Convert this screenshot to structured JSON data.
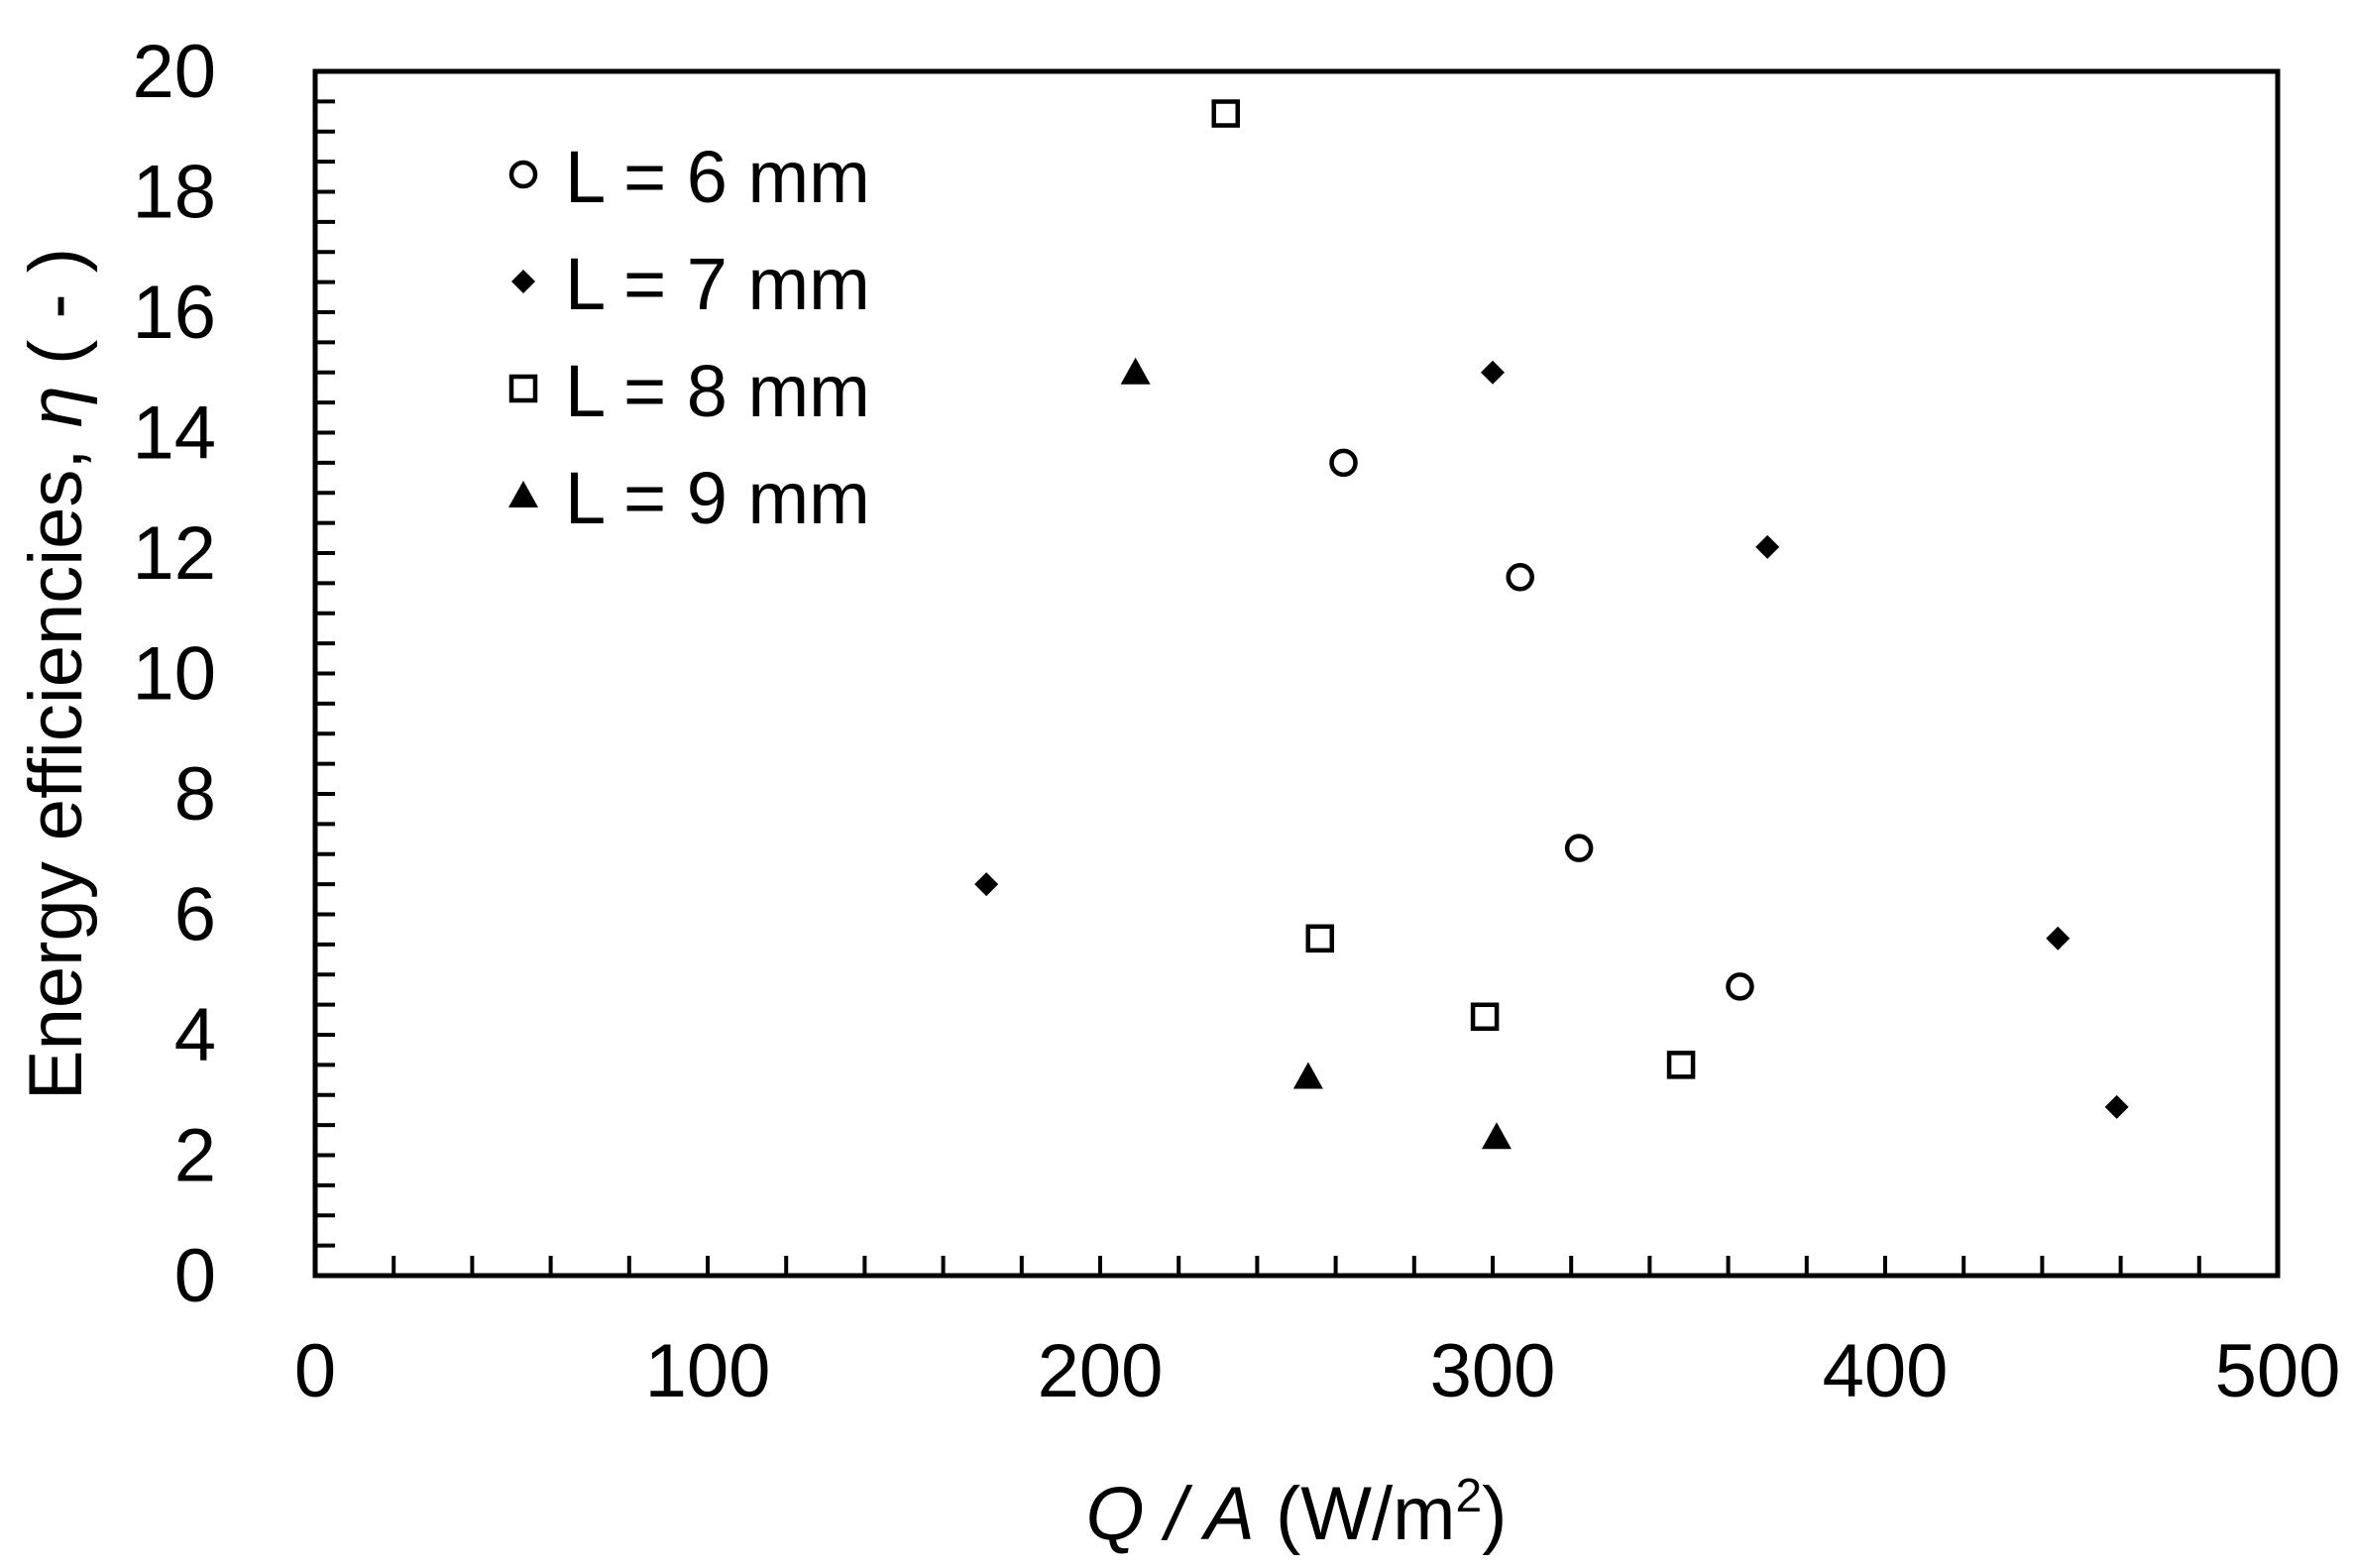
{
  "chart_data": {
    "type": "scatter",
    "title": "",
    "xlabel": {
      "var": "Q / A",
      "unit_open": " (W/m",
      "unit_sup": "2",
      "unit_close": ")"
    },
    "ylabel": {
      "text": "Energy efficiencies, ",
      "var": "η",
      "unit": " ( - )"
    },
    "xlim": [
      0,
      500
    ],
    "ylim": [
      0,
      20
    ],
    "x_major_ticks": [
      "0",
      "100",
      "200",
      "300",
      "400",
      "500"
    ],
    "y_major_ticks": [
      "0",
      "2",
      "4",
      "6",
      "8",
      "10",
      "12",
      "14",
      "16",
      "18",
      "20"
    ],
    "x_minor_step": 20,
    "y_minor_step": 0.5,
    "grid": false,
    "legend_position": "top-left",
    "series": [
      {
        "name": "L = 6 mm",
        "marker": "circle-open",
        "points": [
          [
            262,
            13.5
          ],
          [
            307,
            11.6
          ],
          [
            322,
            7.1
          ],
          [
            363,
            4.8
          ]
        ]
      },
      {
        "name": "L = 7 mm",
        "marker": "diamond-filled",
        "points": [
          [
            171,
            6.5
          ],
          [
            300,
            15.0
          ],
          [
            370,
            12.1
          ],
          [
            444,
            5.6
          ],
          [
            459,
            2.8
          ]
        ]
      },
      {
        "name": "L = 8 mm",
        "marker": "square-open",
        "points": [
          [
            232,
            19.3
          ],
          [
            256,
            5.6
          ],
          [
            298,
            4.3
          ],
          [
            348,
            3.5
          ]
        ]
      },
      {
        "name": "L = 9 mm",
        "marker": "triangle-filled",
        "points": [
          [
            209,
            15.0
          ],
          [
            253,
            3.3
          ],
          [
            301,
            2.3
          ]
        ]
      }
    ]
  }
}
